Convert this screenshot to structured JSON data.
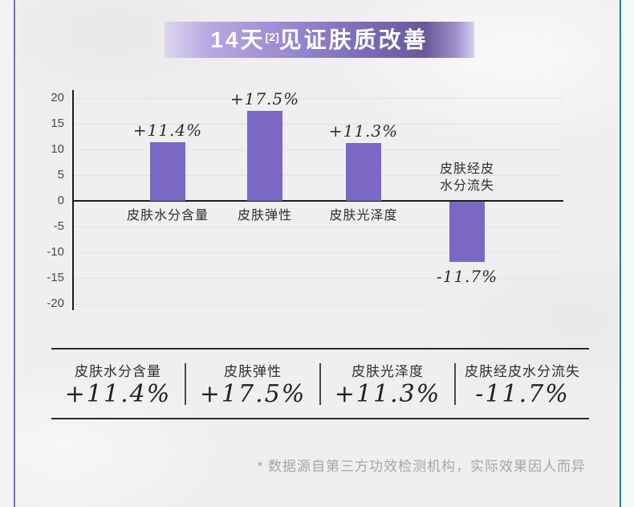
{
  "banner": {
    "title_prefix": "14天",
    "title_sup": "[2]",
    "title_suffix": "见证肤质改善"
  },
  "chart_data": {
    "type": "bar",
    "title": "14天[2]见证肤质改善",
    "categories": [
      "皮肤水分含量",
      "皮肤弹性",
      "皮肤光泽度",
      "皮肤经皮水分流失"
    ],
    "categories_display": [
      "皮肤水分含量",
      "皮肤弹性",
      "皮肤光泽度",
      "皮肤经皮\n水分流失"
    ],
    "values": [
      11.4,
      17.5,
      11.3,
      -11.7
    ],
    "value_labels": [
      "+11.4%",
      "+17.5%",
      "+11.3%",
      "-11.7%"
    ],
    "ylim": [
      -20,
      20
    ],
    "yticks": [
      20,
      15,
      10,
      5,
      0,
      -5,
      -10,
      -15,
      -20
    ],
    "grid": true,
    "legend": "none",
    "bar_color": "#7a68c4"
  },
  "summary": {
    "items": [
      {
        "label": "皮肤水分含量",
        "value": "+11.4%"
      },
      {
        "label": "皮肤弹性",
        "value": "+17.5%"
      },
      {
        "label": "皮肤光泽度",
        "value": "+11.3%"
      },
      {
        "label": "皮肤经皮水分流失",
        "value": "-11.7%"
      }
    ]
  },
  "footnote": "* 数据源自第三方功效检测机构，实际效果因人而异",
  "colors": {
    "bar": "#7a68c4",
    "banner_gradient_light": "#ddd5f0",
    "banner_gradient_dark": "#685898",
    "left_edge_line": "#7d6cb5",
    "right_edge_line": "#2e7d94",
    "axis": "#1e1e1e",
    "gridline": "#e3e3e3",
    "footnote_text": "#a6a6a6"
  }
}
